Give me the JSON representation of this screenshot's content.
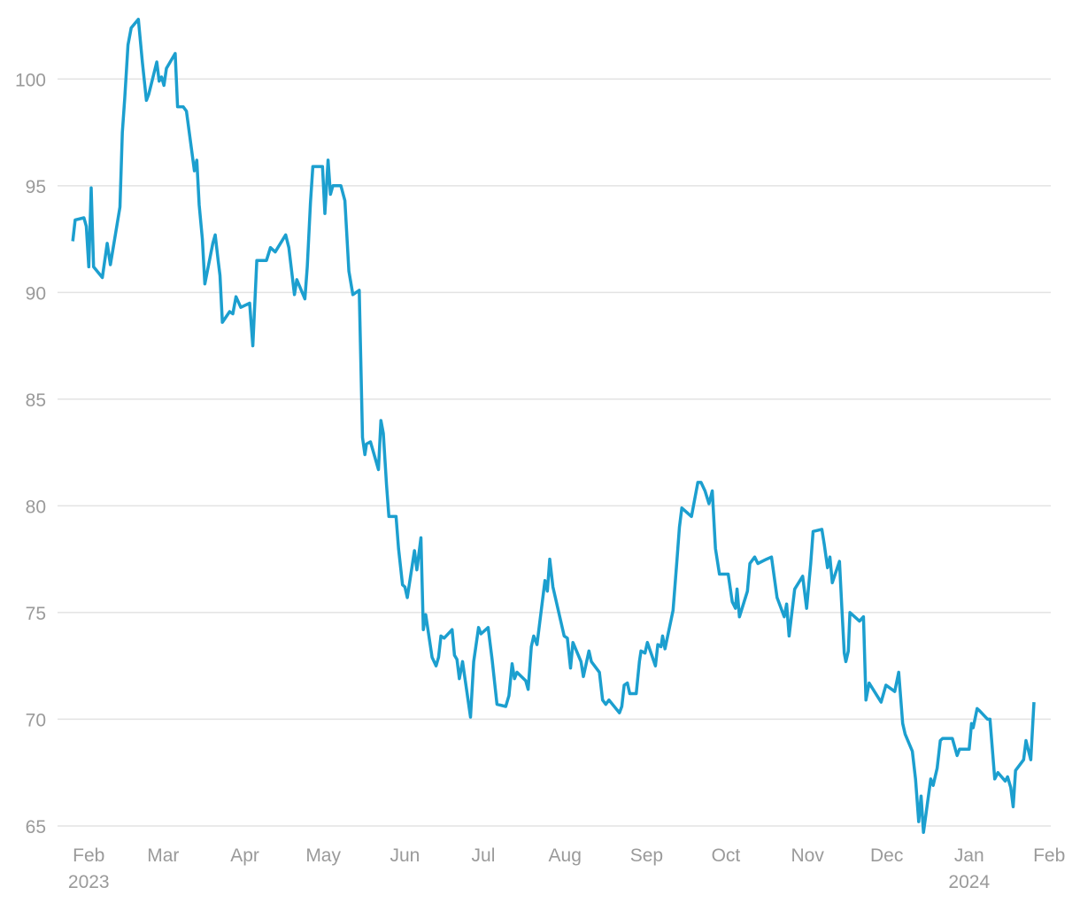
{
  "chart_data": {
    "type": "line",
    "color": "#1c9fcf",
    "grid": true,
    "ylim": [
      64.5,
      103
    ],
    "yticks": [
      65,
      70,
      75,
      80,
      85,
      90,
      95,
      100
    ],
    "xlim": [
      -0.39,
      12.02
    ],
    "xticks": [
      {
        "value": 0,
        "label": "Feb 2023"
      },
      {
        "value": 0.93,
        "label": "Mar"
      },
      {
        "value": 1.95,
        "label": "Apr"
      },
      {
        "value": 2.93,
        "label": "May"
      },
      {
        "value": 3.95,
        "label": "Jun"
      },
      {
        "value": 4.93,
        "label": "Jul"
      },
      {
        "value": 5.95,
        "label": "Aug"
      },
      {
        "value": 6.97,
        "label": "Sep"
      },
      {
        "value": 7.96,
        "label": "Oct"
      },
      {
        "value": 8.98,
        "label": "Nov"
      },
      {
        "value": 9.97,
        "label": "Dec"
      },
      {
        "value": 11.0,
        "label": "Jan 2024"
      },
      {
        "value": 12.0,
        "label": "Feb"
      }
    ],
    "x": [
      -0.2,
      -0.17,
      -0.06,
      -0.03,
      0,
      0.03,
      0.06,
      0.17,
      0.23,
      0.27,
      0.39,
      0.42,
      0.45,
      0.49,
      0.53,
      0.62,
      0.67,
      0.72,
      0.75,
      0.85,
      0.88,
      0.91,
      0.94,
      0.97,
      1.08,
      1.11,
      1.18,
      1.22,
      1.32,
      1.35,
      1.38,
      1.42,
      1.45,
      1.55,
      1.58,
      1.62,
      1.64,
      1.67,
      1.76,
      1.8,
      1.84,
      1.9,
      2.01,
      2.05,
      2.1,
      2.22,
      2.27,
      2.33,
      2.46,
      2.5,
      2.57,
      2.6,
      2.7,
      2.73,
      2.77,
      2.8,
      2.92,
      2.95,
      2.99,
      3.02,
      3.05,
      3.15,
      3.2,
      3.25,
      3.3,
      3.38,
      3.42,
      3.45,
      3.47,
      3.52,
      3.62,
      3.65,
      3.68,
      3.72,
      3.75,
      3.84,
      3.87,
      3.92,
      3.95,
      3.98,
      4.07,
      4.1,
      4.15,
      4.18,
      4.21,
      4.29,
      4.34,
      4.37,
      4.4,
      4.44,
      4.54,
      4.57,
      4.6,
      4.63,
      4.67,
      4.77,
      4.81,
      4.87,
      4.9,
      4.99,
      5.04,
      5.1,
      5.21,
      5.25,
      5.29,
      5.32,
      5.35,
      5.46,
      5.49,
      5.53,
      5.56,
      5.6,
      5.7,
      5.73,
      5.76,
      5.8,
      5.94,
      5.98,
      6.02,
      6.05,
      6.15,
      6.18,
      6.25,
      6.28,
      6.38,
      6.42,
      6.46,
      6.5,
      6.63,
      6.66,
      6.69,
      6.73,
      6.76,
      6.84,
      6.88,
      6.9,
      6.95,
      6.98,
      7.08,
      7.11,
      7.15,
      7.17,
      7.2,
      7.3,
      7.35,
      7.38,
      7.41,
      7.53,
      7.61,
      7.65,
      7.7,
      7.75,
      7.79,
      7.83,
      7.88,
      7.99,
      8.04,
      8.08,
      8.1,
      8.13,
      8.23,
      8.26,
      8.32,
      8.36,
      8.47,
      8.53,
      8.6,
      8.69,
      8.72,
      8.75,
      8.82,
      8.92,
      8.97,
      9.02,
      9.05,
      9.16,
      9.19,
      9.23,
      9.26,
      9.29,
      9.38,
      9.41,
      9.44,
      9.46,
      9.49,
      9.51,
      9.63,
      9.68,
      9.71,
      9.75,
      9.85,
      9.9,
      9.96,
      10.07,
      10.12,
      10.17,
      10.2,
      10.29,
      10.33,
      10.37,
      10.4,
      10.43,
      10.52,
      10.55,
      10.6,
      10.64,
      10.67,
      10.79,
      10.85,
      10.88,
      11.0,
      11.03,
      11.05,
      11.1,
      11.13,
      11.23,
      11.26,
      11.32,
      11.36,
      11.45,
      11.48,
      11.52,
      11.55,
      11.58,
      11.68,
      11.71,
      11.77,
      11.81
    ],
    "values": [
      92.4,
      93.4,
      93.5,
      93.1,
      91.2,
      94.9,
      91.2,
      90.7,
      92.3,
      91.3,
      94.0,
      97.5,
      99.1,
      101.6,
      102.4,
      102.8,
      100.8,
      99.0,
      99.3,
      100.8,
      99.9,
      100.1,
      99.7,
      100.5,
      101.2,
      98.7,
      98.7,
      98.5,
      95.7,
      96.2,
      94.1,
      92.5,
      90.4,
      92.3,
      92.7,
      91.4,
      90.8,
      88.6,
      89.1,
      89.0,
      89.8,
      89.3,
      89.5,
      87.5,
      91.5,
      91.5,
      92.1,
      91.9,
      92.7,
      92.1,
      89.9,
      90.6,
      89.7,
      91.2,
      94.2,
      95.9,
      95.9,
      93.7,
      96.2,
      94.6,
      95.0,
      95.0,
      94.3,
      91.0,
      89.9,
      90.1,
      83.2,
      82.4,
      82.9,
      83.0,
      81.7,
      84.0,
      83.4,
      81.0,
      79.5,
      79.5,
      78.0,
      76.3,
      76.2,
      75.7,
      77.9,
      77.0,
      78.5,
      74.2,
      74.9,
      72.9,
      72.5,
      72.9,
      73.9,
      73.8,
      74.2,
      73.0,
      72.8,
      71.9,
      72.7,
      70.1,
      72.7,
      74.3,
      74.0,
      74.3,
      72.8,
      70.7,
      70.6,
      71.1,
      72.6,
      71.9,
      72.2,
      71.8,
      71.4,
      73.4,
      73.9,
      73.5,
      76.5,
      76.0,
      77.5,
      76.2,
      73.9,
      73.8,
      72.4,
      73.6,
      72.7,
      72.0,
      73.2,
      72.7,
      72.2,
      70.9,
      70.7,
      70.9,
      70.3,
      70.6,
      71.6,
      71.7,
      71.2,
      71.2,
      72.7,
      73.2,
      73.1,
      73.6,
      72.5,
      73.5,
      73.4,
      73.9,
      73.3,
      75.1,
      77.5,
      79.0,
      79.9,
      79.5,
      81.1,
      81.1,
      80.7,
      80.1,
      80.7,
      78.0,
      76.8,
      76.8,
      75.5,
      75.2,
      76.1,
      74.8,
      76.0,
      77.3,
      77.6,
      77.3,
      77.5,
      77.6,
      75.7,
      74.8,
      75.4,
      73.9,
      76.1,
      76.7,
      75.2,
      77.3,
      78.8,
      78.9,
      78.2,
      77.1,
      77.6,
      76.4,
      77.4,
      75.2,
      73.1,
      72.7,
      73.2,
      75.0,
      74.6,
      74.8,
      70.9,
      71.7,
      71.1,
      70.8,
      71.6,
      71.3,
      72.2,
      69.8,
      69.3,
      68.5,
      67.2,
      65.2,
      66.4,
      64.7,
      67.2,
      66.9,
      67.7,
      69.0,
      69.1,
      69.1,
      68.3,
      68.6,
      68.6,
      69.8,
      69.6,
      70.5,
      70.4,
      70.0,
      70.0,
      67.2,
      67.5,
      67.1,
      67.3,
      66.8,
      65.9,
      67.6,
      68.1,
      69.0,
      68.1,
      70.8
    ]
  }
}
